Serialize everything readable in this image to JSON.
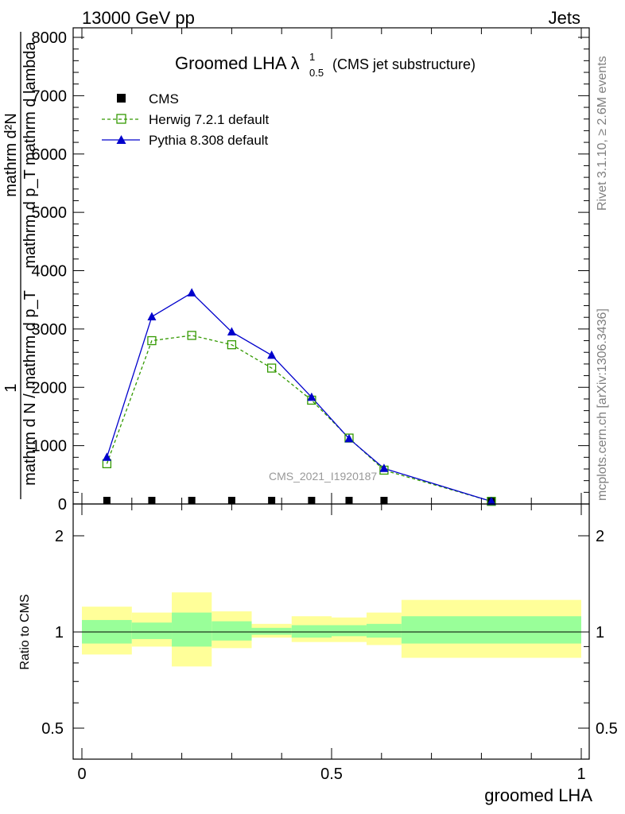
{
  "header": {
    "left": "13000 GeV pp",
    "right": "Jets"
  },
  "title": {
    "main": "Groomed LHA",
    "lambda": "λ",
    "sup": "1",
    "sub": "0.5",
    "suffix": "(CMS jet substructure)"
  },
  "ylabel": {
    "numerator": "mathrm d²N",
    "denominator": "mathrm d p_T mathrm d lambda",
    "prefix_num": "1",
    "prefix_den": "mathrm d N / mathrm d p_T"
  },
  "side": {
    "rivet": "Rivet 3.1.10, ≥ 2.6M events",
    "mcplots": "mcplots.cern.ch [arXiv:1306.3436]"
  },
  "watermark": "CMS_2021_I1920187",
  "xlabel": "groomed LHA",
  "ratio_ylabel": "Ratio to CMS",
  "colors": {
    "herwig": "#339900",
    "pythia": "#0000cc",
    "band_outer": "#ffff99",
    "band_inner": "#99ff99"
  },
  "legend": [
    {
      "label": "CMS",
      "marker": "filled-square"
    },
    {
      "label": "Herwig 7.2.1 default",
      "marker": "open-square"
    },
    {
      "label": "Pythia 8.308 default",
      "marker": "filled-triangle"
    }
  ],
  "chart_data": [
    {
      "type": "line",
      "panel": "main",
      "x": [
        0.05,
        0.14,
        0.22,
        0.3,
        0.38,
        0.46,
        0.535,
        0.605,
        0.82
      ],
      "ylim": [
        0,
        8000
      ],
      "xlim": [
        0,
        1
      ],
      "yticks": [
        "0",
        "1000",
        "2000",
        "3000",
        "4000",
        "5000",
        "6000",
        "7000",
        "8000"
      ],
      "yticks_display": [
        "",
        "1000",
        "2000",
        "3000",
        "4000",
        "5000",
        "6000",
        "7000",
        "8000"
      ],
      "series": [
        {
          "name": "CMS",
          "values": [
            0,
            0,
            0,
            0,
            0,
            0,
            0,
            0,
            0
          ]
        },
        {
          "name": "Herwig 7.2.1 default",
          "values": [
            690,
            2800,
            2890,
            2730,
            2330,
            1780,
            1130,
            580,
            45
          ]
        },
        {
          "name": "Pythia 8.308 default",
          "values": [
            800,
            3210,
            3620,
            2950,
            2550,
            1830,
            1120,
            610,
            45
          ]
        }
      ]
    },
    {
      "type": "area",
      "panel": "ratio",
      "ylabel": "Ratio to CMS",
      "xlabel": "groomed LHA",
      "ylim": [
        0.35,
        2.3
      ],
      "log_y": true,
      "yticks": [
        "0.5",
        "1",
        "2"
      ],
      "xticks": [
        "0",
        "0.5",
        "1"
      ],
      "bins": [
        {
          "xlo": 0.0,
          "xhi": 0.1,
          "inner": [
            0.92,
            1.09
          ],
          "outer": [
            0.85,
            1.2
          ]
        },
        {
          "xlo": 0.1,
          "xhi": 0.18,
          "inner": [
            0.95,
            1.07
          ],
          "outer": [
            0.9,
            1.15
          ]
        },
        {
          "xlo": 0.18,
          "xhi": 0.26,
          "inner": [
            0.9,
            1.15
          ],
          "outer": [
            0.78,
            1.33
          ]
        },
        {
          "xlo": 0.26,
          "xhi": 0.34,
          "inner": [
            0.94,
            1.08
          ],
          "outer": [
            0.89,
            1.16
          ]
        },
        {
          "xlo": 0.34,
          "xhi": 0.42,
          "inner": [
            0.98,
            1.03
          ],
          "outer": [
            0.96,
            1.06
          ]
        },
        {
          "xlo": 0.42,
          "xhi": 0.5,
          "inner": [
            0.96,
            1.05
          ],
          "outer": [
            0.93,
            1.12
          ]
        },
        {
          "xlo": 0.5,
          "xhi": 0.57,
          "inner": [
            0.97,
            1.05
          ],
          "outer": [
            0.93,
            1.11
          ]
        },
        {
          "xlo": 0.57,
          "xhi": 0.64,
          "inner": [
            0.96,
            1.06
          ],
          "outer": [
            0.91,
            1.15
          ]
        },
        {
          "xlo": 0.64,
          "xhi": 1.0,
          "inner": [
            0.92,
            1.12
          ],
          "outer": [
            0.83,
            1.26
          ]
        }
      ],
      "reference": 1.0
    }
  ]
}
